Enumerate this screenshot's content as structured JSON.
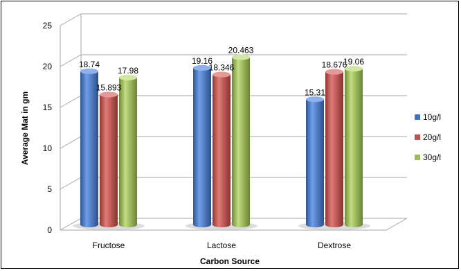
{
  "chart_data": {
    "type": "bar",
    "title": "",
    "xlabel": "Carbon Source",
    "ylabel": "Average Mat in gm",
    "categories": [
      "Fructose",
      "Lactose",
      "Dextrose"
    ],
    "series": [
      {
        "name": "10g/l",
        "color": "#4472C4",
        "values": [
          18.74,
          19.16,
          15.31
        ],
        "labels": [
          "18.74",
          "19.16",
          "15.31"
        ]
      },
      {
        "name": "20g/l",
        "color": "#C0504D",
        "values": [
          15.893,
          18.346,
          18.676
        ],
        "labels": [
          "15.893",
          "18.346",
          "18.676"
        ]
      },
      {
        "name": "30g/l",
        "color": "#9BBB59",
        "values": [
          17.98,
          20.463,
          19.06
        ],
        "labels": [
          "17.98",
          "20.463",
          "19.06"
        ]
      }
    ],
    "ylim": [
      0,
      25
    ],
    "yticks": [
      "0",
      "5",
      "10",
      "15",
      "20",
      "25"
    ],
    "grid": true,
    "legend_position": "right"
  }
}
